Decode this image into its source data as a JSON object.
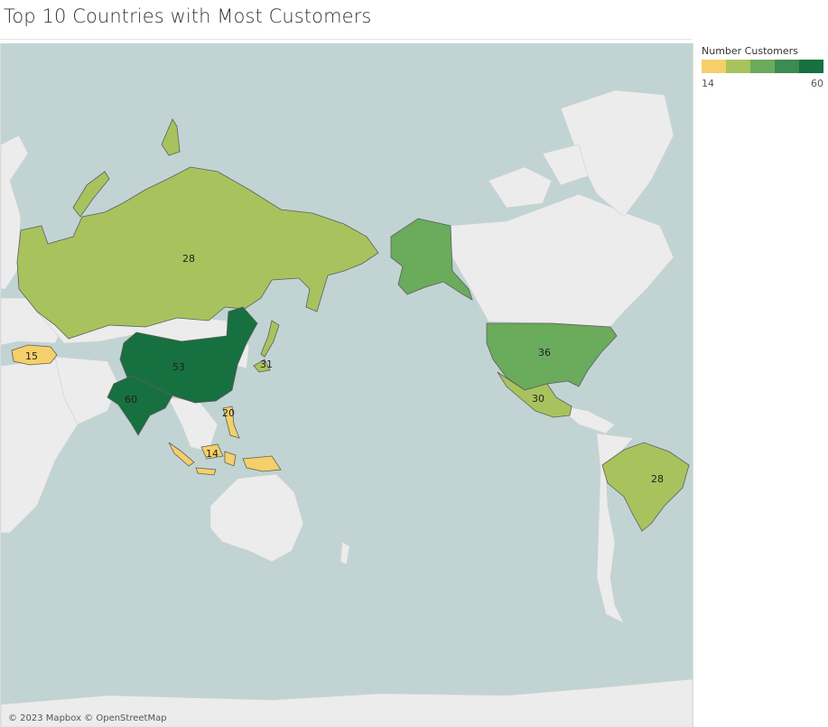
{
  "title": "Top 10 Countries with Most Customers",
  "legend": {
    "title": "Number Customers",
    "min": "14",
    "max": "60",
    "colors": [
      "#f5cf6a",
      "#a8c35d",
      "#6aab5c",
      "#3d8b52",
      "#17703f"
    ]
  },
  "attribution": "© 2023 Mapbox © OpenStreetMap",
  "colors": {
    "water": "#c1d4d3",
    "land": "#ececec",
    "border": "#c9c9c9",
    "country_stroke": "#5e5e5e"
  },
  "countries": [
    {
      "id": "india",
      "value": 60,
      "label": "60",
      "color": "#17703f"
    },
    {
      "id": "china",
      "value": 53,
      "label": "53",
      "color": "#17703f"
    },
    {
      "id": "usa",
      "value": 36,
      "label": "36",
      "color": "#6aab5c"
    },
    {
      "id": "alaska",
      "value": 36,
      "label": "",
      "color": "#6aab5c"
    },
    {
      "id": "japan",
      "value": 31,
      "label": "31",
      "color": "#a8c35d"
    },
    {
      "id": "mexico",
      "value": 30,
      "label": "30",
      "color": "#a8c35d"
    },
    {
      "id": "russia",
      "value": 28,
      "label": "28",
      "color": "#a8c35d"
    },
    {
      "id": "brazil",
      "value": 28,
      "label": "28",
      "color": "#a8c35d"
    },
    {
      "id": "philippines",
      "value": 20,
      "label": "20",
      "color": "#f5cf6a"
    },
    {
      "id": "turkey",
      "value": 15,
      "label": "15",
      "color": "#f5cf6a"
    },
    {
      "id": "indonesia",
      "value": 14,
      "label": "14",
      "color": "#f5cf6a"
    }
  ]
}
